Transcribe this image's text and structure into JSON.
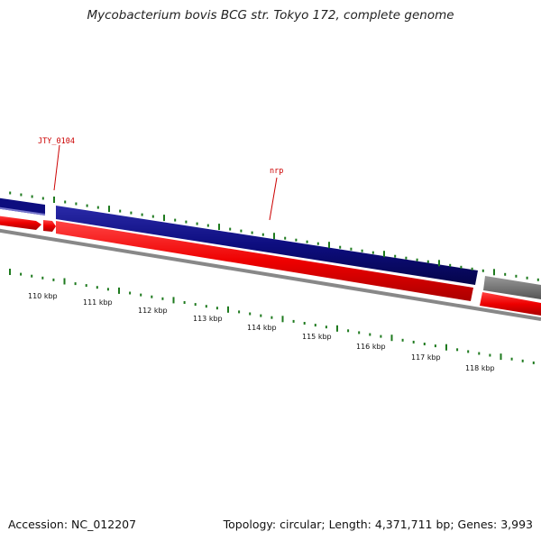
{
  "title": "Mycobacterium bovis BCG str. Tokyo 172, complete genome",
  "footer": {
    "accession": "Accession: NC_012207",
    "stats": "Topology: circular; Length: 4,371,711 bp; Genes: 3,993"
  },
  "genes": [
    {
      "label": "JTY_0104"
    },
    {
      "label": "nrp"
    }
  ],
  "scale": {
    "labels": [
      "110 kbp",
      "111 kbp",
      "112 kbp",
      "113 kbp",
      "114 kbp",
      "115 kbp",
      "116 kbp",
      "117 kbp",
      "118 kbp"
    ]
  },
  "colors": {
    "forward_feature": "#0d0d7f",
    "forward_feature_faded": "#7777cc",
    "reverse_feature": "#ee0000",
    "other_feature": "#777777",
    "backbone": "#888888",
    "ticks": "#1e7a1e",
    "gene_label": "#cc0000"
  }
}
